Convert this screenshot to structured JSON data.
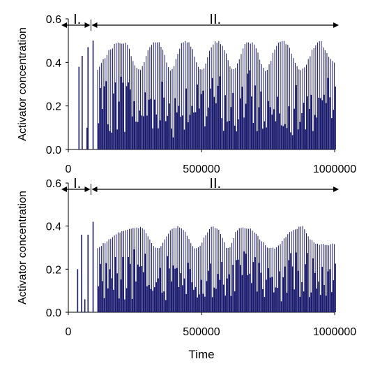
{
  "figure": {
    "x_axis_label": "Time",
    "bar_color": "#1a1a6e"
  },
  "chart_data": [
    {
      "type": "bar",
      "ylabel": "Activator concentration",
      "xlabel": "",
      "xlim": [
        0,
        1000000
      ],
      "ylim": [
        0,
        0.6
      ],
      "x_ticks": [
        "0",
        "500000",
        "1000000"
      ],
      "y_ticks": [
        "0.0",
        "0.2",
        "0.4",
        "0.6"
      ],
      "regions": [
        {
          "label": "I.",
          "x_start": 0,
          "x_end": 85000
        },
        {
          "label": "II.",
          "x_start": 85000,
          "x_end": 1000000
        }
      ],
      "transient_spikes": [
        {
          "x": 40000,
          "y": 0.38
        },
        {
          "x": 52000,
          "y": 0.43
        },
        {
          "x": 70000,
          "y": 0.1
        },
        {
          "x": 74000,
          "y": 0.47
        },
        {
          "x": 93000,
          "y": 0.5
        }
      ],
      "oscillation": {
        "x_start": 110000,
        "x_end": 1000000,
        "spike_spacing": 7000,
        "envelope_peaks_x": [
          200000,
          330000,
          440000,
          560000,
          680000,
          800000,
          950000
        ],
        "envelope_max": 0.5,
        "envelope_min": 0.37
      }
    },
    {
      "type": "bar",
      "ylabel": "Activator concentration",
      "xlabel": "Time",
      "xlim": [
        0,
        1000000
      ],
      "ylim": [
        0,
        0.6
      ],
      "x_ticks": [
        "0",
        "500000",
        "1000000"
      ],
      "y_ticks": [
        "0.0",
        "0.2",
        "0.4",
        "0.6"
      ],
      "regions": [
        {
          "label": "I.",
          "x_start": 0,
          "x_end": 85000
        },
        {
          "label": "II.",
          "x_start": 85000,
          "x_end": 1000000
        }
      ],
      "transient_spikes": [
        {
          "x": 35000,
          "y": 0.2
        },
        {
          "x": 50000,
          "y": 0.36
        },
        {
          "x": 62000,
          "y": 0.06
        },
        {
          "x": 74000,
          "y": 0.36
        },
        {
          "x": 93000,
          "y": 0.42
        }
      ],
      "oscillation": {
        "x_start": 110000,
        "x_end": 1000000,
        "spike_spacing": 7000,
        "envelope_peaks_x": [
          260000,
          410000,
          550000,
          650000,
          880000
        ],
        "envelope_max": 0.4,
        "envelope_min": 0.3
      }
    }
  ]
}
